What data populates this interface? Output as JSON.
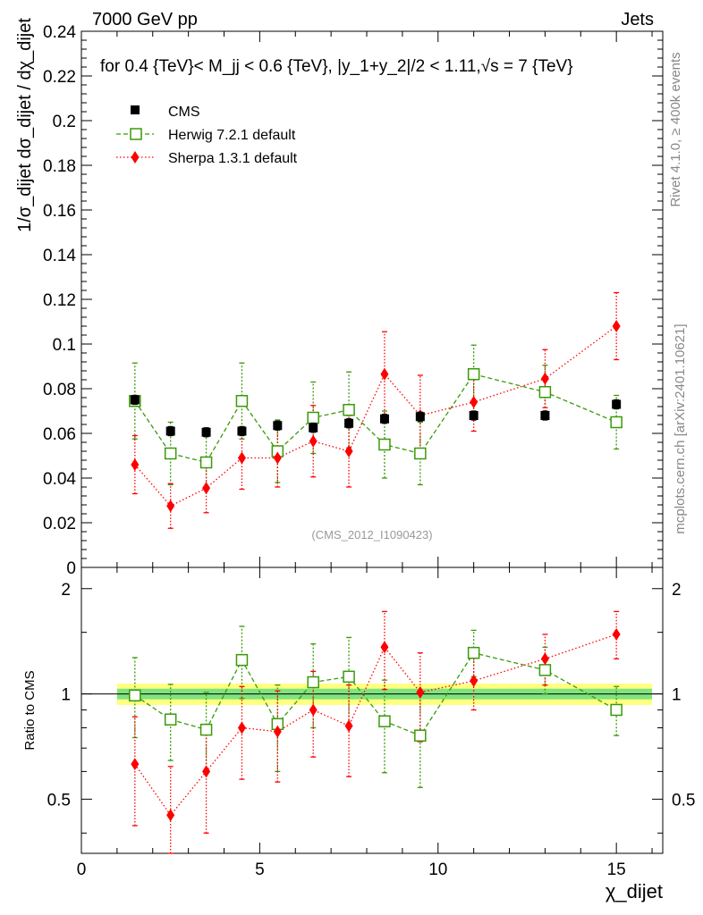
{
  "header": {
    "left": "7000 GeV pp",
    "right": "Jets",
    "subtitle": "for 0.4 {TeV}< M_jj < 0.6 {TeV}, |y_1+y_2|/2 < 1.11,√s = 7 {TeV}"
  },
  "side_labels": {
    "rivet": "Rivet 4.1.0, ≥ 400k events",
    "mcplots": "mcplots.cern.ch [arXiv:2401.10621]"
  },
  "watermark": "(CMS_2012_I1090423)",
  "axes": {
    "main_ylabel": "1/σ_dijet dσ_dijet / dχ_dijet",
    "ratio_ylabel": "Ratio to CMS",
    "xlabel": "χ_dijet"
  },
  "colors": {
    "cms": "#000000",
    "herwig": "#3a9a0a",
    "sherpa": "#ff0000",
    "band_outer": "#ffff80",
    "band_inner": "#7fe37f"
  },
  "chart_data": [
    {
      "type": "scatter",
      "panel": "main",
      "xlim": [
        0,
        16.3
      ],
      "ylim": [
        0,
        0.24
      ],
      "yticks": [
        "0",
        "0.02",
        "0.04",
        "0.06",
        "0.08",
        "0.1",
        "0.12",
        "0.14",
        "0.16",
        "0.18",
        "0.2",
        "0.22",
        "0.24"
      ],
      "xticks": [
        "0",
        "5",
        "10",
        "15"
      ],
      "x": [
        1.5,
        2.5,
        3.5,
        4.5,
        5.5,
        6.5,
        7.5,
        8.5,
        9.5,
        11,
        13,
        15
      ],
      "series": [
        {
          "name": "CMS",
          "values": [
            0.075,
            0.061,
            0.0605,
            0.061,
            0.0635,
            0.0625,
            0.0645,
            0.0665,
            0.0675,
            0.068,
            0.068,
            0.073
          ],
          "errors": [
            0.002,
            0.002,
            0.002,
            0.002,
            0.002,
            0.002,
            0.002,
            0.002,
            0.002,
            0.002,
            0.002,
            0.002
          ]
        },
        {
          "name": "Herwig 7.2.1 default",
          "values": [
            0.0745,
            0.051,
            0.047,
            0.0745,
            0.052,
            0.067,
            0.0705,
            0.055,
            0.051,
            0.0865,
            0.0785,
            0.065
          ],
          "errors": [
            0.017,
            0.014,
            0.012,
            0.017,
            0.014,
            0.016,
            0.017,
            0.015,
            0.014,
            0.013,
            0.012,
            0.012
          ]
        },
        {
          "name": "Sherpa 1.3.1 default",
          "values": [
            0.046,
            0.0275,
            0.0355,
            0.049,
            0.049,
            0.0565,
            0.052,
            0.0865,
            0.068,
            0.074,
            0.0845,
            0.108
          ],
          "errors": [
            0.013,
            0.01,
            0.011,
            0.014,
            0.013,
            0.016,
            0.016,
            0.019,
            0.018,
            0.013,
            0.013,
            0.015
          ]
        }
      ]
    },
    {
      "type": "scatter",
      "panel": "ratio",
      "xlim": [
        0,
        16.3
      ],
      "ylim": [
        0.35,
        2.3
      ],
      "yscale": "log",
      "yticks": [
        "0.5",
        "1",
        "2"
      ],
      "reference": 1,
      "band": {
        "x_start": 1,
        "x_end": 16,
        "outer": [
          0.93,
          1.07
        ],
        "inner": [
          0.965,
          1.035
        ]
      },
      "x": [
        1.5,
        2.5,
        3.5,
        4.5,
        5.5,
        6.5,
        7.5,
        8.5,
        9.5,
        11,
        13,
        15
      ],
      "series": [
        {
          "name": "Herwig 7.2.1 default",
          "values": [
            0.99,
            0.845,
            0.79,
            1.25,
            0.82,
            1.08,
            1.12,
            0.835,
            0.76,
            1.31,
            1.17,
            0.9
          ],
          "err_low": [
            0.24,
            0.2,
            0.19,
            0.28,
            0.22,
            0.28,
            0.3,
            0.24,
            0.22,
            0.19,
            0.17,
            0.14
          ],
          "err_high": [
            0.28,
            0.22,
            0.22,
            0.31,
            0.24,
            0.31,
            0.33,
            0.26,
            0.25,
            0.21,
            0.19,
            0.15
          ]
        },
        {
          "name": "Sherpa 1.3.1 default",
          "values": [
            0.63,
            0.45,
            0.6,
            0.8,
            0.78,
            0.9,
            0.81,
            1.36,
            1.01,
            1.09,
            1.26,
            1.48
          ],
          "err_low": [
            0.21,
            0.15,
            0.2,
            0.23,
            0.22,
            0.24,
            0.23,
            0.33,
            0.28,
            0.19,
            0.2,
            0.22
          ],
          "err_high": [
            0.23,
            0.17,
            0.21,
            0.25,
            0.24,
            0.26,
            0.25,
            0.36,
            0.3,
            0.21,
            0.22,
            0.24
          ]
        }
      ]
    }
  ]
}
